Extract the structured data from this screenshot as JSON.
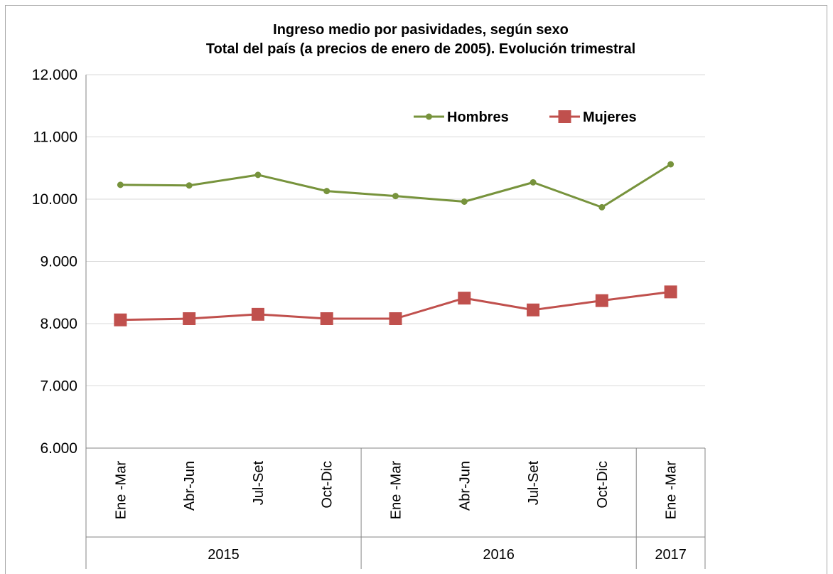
{
  "chart_data": {
    "type": "line",
    "title": "Ingreso medio por pasividades,  según sexo",
    "subtitle": "Total del país (a precios de enero de 2005). Evolución trimestral",
    "xlabel": "",
    "ylabel": "",
    "ylim": [
      6000,
      12000
    ],
    "yticks": [
      6000,
      7000,
      8000,
      9000,
      10000,
      11000,
      12000
    ],
    "ytick_labels": [
      "6.000",
      "7.000",
      "8.000",
      "9.000",
      "10.000",
      "11.000",
      "12.000"
    ],
    "categories": [
      "Ene -Mar",
      "Abr-Jun",
      "Jul-Set",
      "Oct-Dic",
      "Ene -Mar",
      "Abr-Jun",
      "Jul-Set",
      "Oct-Dic",
      "Ene -Mar"
    ],
    "groups": [
      {
        "label": "2015",
        "count": 4
      },
      {
        "label": "2016",
        "count": 4
      },
      {
        "label": "2017",
        "count": 1
      }
    ],
    "grid": true,
    "legend_position": "top-right",
    "series": [
      {
        "name": "Hombres",
        "color": "#77933c",
        "marker": "circle",
        "values": [
          10230,
          10220,
          10390,
          10130,
          10050,
          9960,
          10270,
          9870,
          10560
        ]
      },
      {
        "name": "Mujeres",
        "color": "#c0504d",
        "marker": "square",
        "values": [
          8060,
          8080,
          8150,
          8080,
          8080,
          8410,
          8220,
          8370,
          8510
        ]
      }
    ]
  }
}
